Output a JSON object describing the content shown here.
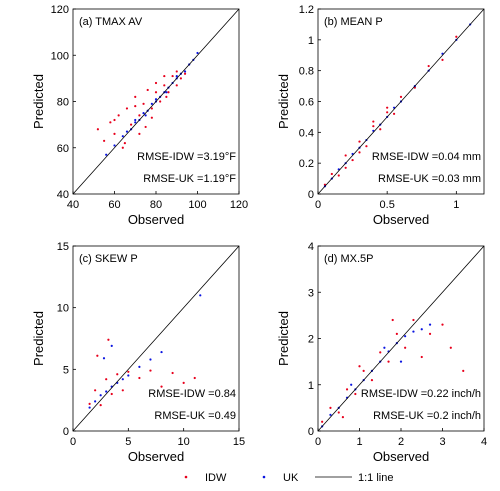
{
  "colors": {
    "idw": "#e8001c",
    "uk": "#0a14e0",
    "line": "#000000"
  },
  "legend": {
    "placement": "bottom",
    "entries": [
      {
        "key": "idw",
        "label": "IDW"
      },
      {
        "key": "uk",
        "label": "UK"
      },
      {
        "key": "line",
        "label": "1:1 line"
      }
    ]
  },
  "chart_data": [
    {
      "type": "scatter",
      "title": "(a) TMAX AV",
      "xlabel": "Observed",
      "ylabel": "Predicted",
      "xlim": [
        40,
        120
      ],
      "ylim": [
        40,
        120
      ],
      "xticks": [
        "40",
        "60",
        "80",
        "100",
        "120"
      ],
      "yticks": [
        "40",
        "60",
        "80",
        "100",
        "120"
      ],
      "annotations": {
        "idw": "RMSE-IDW =3.19°F",
        "uk": "RMSE-UK =1.19°F"
      },
      "series": [
        {
          "name": "IDW",
          "color_key": "idw",
          "x": [
            52,
            55,
            58,
            60,
            62,
            64,
            66,
            68,
            70,
            72,
            74,
            76,
            78,
            80,
            82,
            84,
            86,
            88,
            90,
            92,
            94,
            60,
            65,
            70,
            75,
            80,
            85,
            90,
            72,
            78,
            84
          ],
          "y": [
            68,
            63,
            71,
            66,
            74,
            60,
            77,
            70,
            82,
            74,
            79,
            85,
            77,
            84,
            80,
            87,
            84,
            91,
            87,
            90,
            92,
            72,
            62,
            78,
            69,
            88,
            82,
            93,
            66,
            73,
            91
          ]
        },
        {
          "name": "UK",
          "color_key": "uk",
          "x": [
            56,
            60,
            64,
            66,
            68,
            70,
            72,
            74,
            76,
            78,
            80,
            82,
            84,
            86,
            88,
            90,
            92,
            94,
            96,
            98,
            100,
            70,
            75,
            80,
            85,
            90
          ],
          "y": [
            57,
            61,
            65,
            67,
            68,
            71,
            72,
            75,
            76,
            79,
            80,
            82,
            84,
            86,
            88,
            90,
            92,
            93,
            96,
            98,
            101,
            72,
            74,
            81,
            84,
            91
          ]
        }
      ]
    },
    {
      "type": "scatter",
      "title": "(b) MEAN P",
      "xlabel": "Observed",
      "ylabel": "Predicted",
      "xlim": [
        0,
        1.2
      ],
      "ylim": [
        0,
        1.2
      ],
      "xticks": [
        "0",
        "0.5",
        "1"
      ],
      "xtick_values": [
        0,
        0.5,
        1
      ],
      "yticks": [
        "0",
        "0.2",
        "0.4",
        "0.6",
        "0.8",
        "1",
        "1.2"
      ],
      "annotations": {
        "idw": "RMSE-IDW =0.04 mm",
        "uk": "RMSE-UK =0.03 mm"
      },
      "series": [
        {
          "name": "IDW",
          "color_key": "idw",
          "x": [
            0.05,
            0.1,
            0.15,
            0.2,
            0.25,
            0.3,
            0.35,
            0.4,
            0.45,
            0.5,
            0.55,
            0.6,
            0.7,
            0.8,
            0.9,
            1.0,
            0.2,
            0.3,
            0.4,
            0.5
          ],
          "y": [
            0.06,
            0.13,
            0.12,
            0.25,
            0.22,
            0.34,
            0.31,
            0.44,
            0.42,
            0.53,
            0.52,
            0.63,
            0.69,
            0.83,
            0.87,
            1.02,
            0.17,
            0.27,
            0.47,
            0.56
          ]
        },
        {
          "name": "UK",
          "color_key": "uk",
          "x": [
            0.05,
            0.1,
            0.15,
            0.2,
            0.25,
            0.3,
            0.35,
            0.4,
            0.45,
            0.5,
            0.55,
            0.6,
            0.7,
            0.8,
            0.9,
            1.0,
            1.1
          ],
          "y": [
            0.05,
            0.1,
            0.16,
            0.2,
            0.26,
            0.3,
            0.35,
            0.41,
            0.45,
            0.5,
            0.56,
            0.6,
            0.7,
            0.8,
            0.91,
            1.0,
            1.1
          ]
        }
      ]
    },
    {
      "type": "scatter",
      "title": "(c) SKEW P",
      "xlabel": "Observed",
      "ylabel": "Predicted",
      "xlim": [
        0,
        15
      ],
      "ylim": [
        0,
        15
      ],
      "xticks": [
        "0",
        "5",
        "10",
        "15"
      ],
      "yticks": [
        "0",
        "5",
        "10",
        "15"
      ],
      "annotations": {
        "idw": "RMSE-IDW =0.84",
        "uk": "RMSE-UK =0.49"
      },
      "series": [
        {
          "name": "IDW",
          "color_key": "idw",
          "x": [
            1.5,
            2.0,
            2.5,
            3.0,
            3.5,
            4.0,
            4.5,
            5.0,
            6.0,
            7.0,
            8.0,
            9.0,
            10.0,
            11.0,
            2.2,
            3.2
          ],
          "y": [
            2.2,
            3.3,
            2.1,
            4.2,
            3.0,
            4.6,
            3.3,
            4.8,
            4.3,
            4.9,
            3.6,
            4.7,
            3.9,
            4.3,
            6.1,
            7.4
          ]
        },
        {
          "name": "UK",
          "color_key": "uk",
          "x": [
            1.5,
            2.0,
            2.5,
            3.0,
            3.5,
            4.0,
            4.5,
            5.0,
            6.0,
            7.0,
            8.0,
            11.5,
            2.8,
            3.5
          ],
          "y": [
            1.9,
            2.4,
            2.9,
            3.2,
            3.6,
            3.9,
            4.2,
            4.5,
            5.2,
            5.8,
            6.4,
            11.0,
            5.9,
            6.9
          ]
        }
      ]
    },
    {
      "type": "scatter",
      "title": "(d) MX.5P",
      "xlabel": "Observed",
      "ylabel": "Predicted",
      "xlim": [
        0,
        4
      ],
      "ylim": [
        0,
        4
      ],
      "xticks": [
        "0",
        "1",
        "2",
        "3",
        "4"
      ],
      "yticks": [
        "0",
        "1",
        "2",
        "3",
        "4"
      ],
      "annotations": {
        "idw": "RMSE-IDW =0.22 inch/h",
        "uk": "RMSE-UK =0.2 inch/h"
      },
      "series": [
        {
          "name": "IDW",
          "color_key": "idw",
          "x": [
            0.1,
            0.3,
            0.5,
            0.7,
            0.9,
            1.1,
            1.3,
            1.5,
            1.7,
            1.9,
            2.1,
            2.3,
            2.5,
            2.7,
            3.0,
            3.2,
            3.5,
            0.6,
            1.0,
            1.8
          ],
          "y": [
            0.2,
            0.5,
            0.4,
            0.9,
            0.8,
            1.3,
            1.1,
            1.7,
            1.5,
            2.1,
            1.8,
            2.4,
            1.6,
            2.1,
            2.3,
            1.8,
            1.3,
            0.3,
            1.4,
            2.4
          ]
        },
        {
          "name": "UK",
          "color_key": "uk",
          "x": [
            0.1,
            0.3,
            0.5,
            0.7,
            0.9,
            1.1,
            1.3,
            1.5,
            1.7,
            1.9,
            2.1,
            2.3,
            2.5,
            2.7,
            0.8,
            1.6,
            2.0
          ],
          "y": [
            0.1,
            0.35,
            0.5,
            0.72,
            0.9,
            1.1,
            1.3,
            1.5,
            1.72,
            1.9,
            2.05,
            2.15,
            2.2,
            2.3,
            1.0,
            1.8,
            1.5
          ]
        }
      ]
    }
  ]
}
